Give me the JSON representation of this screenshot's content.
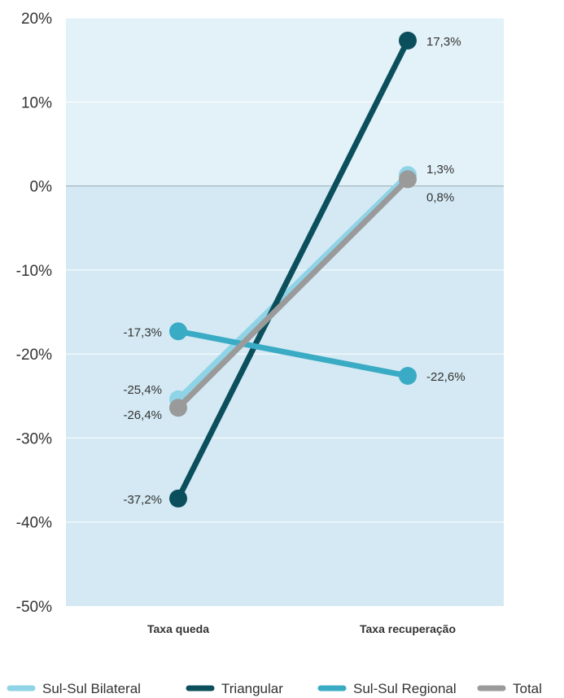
{
  "chart_data": {
    "type": "line",
    "categories": [
      "Taxa queda",
      "Taxa recuperação"
    ],
    "ylim": [
      -50,
      20
    ],
    "yticks": [
      20,
      10,
      0,
      -10,
      -20,
      -30,
      -40,
      -50
    ],
    "ytick_labels": [
      "20%",
      "10%",
      "0%",
      "-10%",
      "-20%",
      "-30%",
      "-40%",
      "-50%"
    ],
    "grid": true,
    "legend_position": "bottom",
    "series": [
      {
        "name": "Sul-Sul Bilateral",
        "color": "#8fd3e6",
        "values": [
          -25.4,
          1.3
        ],
        "labels": [
          "-25,4%",
          "1,3%"
        ]
      },
      {
        "name": "Triangular",
        "color": "#0b4f5c",
        "values": [
          -37.2,
          17.3
        ],
        "labels": [
          "-37,2%",
          "17,3%"
        ]
      },
      {
        "name": "Sul-Sul Regional",
        "color": "#3aabc4",
        "values": [
          -17.3,
          -22.6
        ],
        "labels": [
          "-17,3%",
          "-22,6%"
        ]
      },
      {
        "name": "Total",
        "color": "#9a9a9a",
        "values": [
          -26.4,
          0.8
        ],
        "labels": [
          "-26,4%",
          "0,8%"
        ]
      }
    ],
    "colors": {
      "positive_region": "#e3f1f8",
      "negative_region": "#d4e9f3",
      "zero_line": "#9fb3bd"
    }
  }
}
